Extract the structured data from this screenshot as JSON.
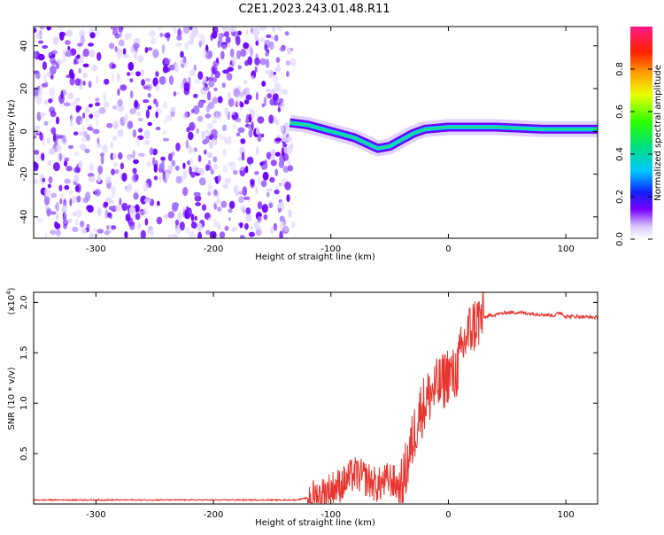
{
  "title": "C2E1.2023.243.01.48.R11",
  "colors": {
    "snr_line": "#e8342f",
    "spectro_purple": "#6a00ff",
    "spectro_light": "#d9c8ff"
  },
  "chart_data": [
    {
      "type": "heatmap",
      "xlabel": "Height of straight line (km)",
      "ylabel": "Frequency (Hz)",
      "xlim": [
        -353,
        127
      ],
      "ylim": [
        -50,
        49
      ],
      "x_ticks": [
        "-300",
        "-200",
        "-100",
        "0",
        "100"
      ],
      "x_tick_values": [
        -300,
        -200,
        -100,
        0,
        100
      ],
      "y_ticks": [
        "40",
        "20",
        "0",
        "-20",
        "-40"
      ],
      "y_tick_values": [
        40,
        20,
        0,
        -20,
        -40
      ],
      "noise_region": [
        -353,
        -132
      ],
      "signal_track": {
        "x": [
          -135,
          -120,
          -100,
          -80,
          -60,
          -50,
          -40,
          -30,
          -20,
          0,
          40,
          80,
          127
        ],
        "y": [
          4,
          3,
          0,
          -3,
          -8,
          -7,
          -4,
          -1,
          1,
          2,
          2,
          1,
          1
        ]
      },
      "colorbar": {
        "label": "Normalized spectral amplitude",
        "range": [
          0,
          1
        ],
        "ticks": [
          "0.0",
          "0.2",
          "0.4",
          "0.6",
          "0.8"
        ],
        "tick_values": [
          0,
          0.2,
          0.4,
          0.6,
          0.8
        ]
      }
    },
    {
      "type": "line",
      "xlabel": "Height of straight line (km)",
      "ylabel": "SNR (10 * v/v)",
      "scale_note": "(x10",
      "scale_exp": "4",
      "scale_close": ")",
      "xlim": [
        -353,
        127
      ],
      "ylim": [
        0,
        2.1
      ],
      "x_ticks": [
        "-300",
        "-200",
        "-100",
        "0",
        "100"
      ],
      "x_tick_values": [
        -300,
        -200,
        -100,
        0,
        100
      ],
      "y_ticks": [
        "0.5",
        "1.0",
        "1.5",
        "2.0"
      ],
      "y_tick_values": [
        0.5,
        1.0,
        1.5,
        2.0
      ],
      "series": [
        {
          "x": [
            -353,
            -300,
            -200,
            -130,
            -110,
            -100,
            -90,
            -80,
            -70,
            -60,
            -50,
            -40,
            -35,
            -30,
            -25,
            -20,
            -15,
            -10,
            -5,
            0,
            5,
            10,
            15,
            20,
            25,
            30,
            40,
            50,
            60,
            70,
            80,
            90,
            95,
            100,
            110,
            127
          ],
          "y": [
            0.04,
            0.04,
            0.04,
            0.04,
            0.08,
            0.15,
            0.2,
            0.3,
            0.25,
            0.18,
            0.25,
            0.15,
            0.4,
            0.65,
            0.9,
            1.0,
            1.1,
            1.15,
            1.2,
            1.3,
            1.25,
            1.45,
            1.65,
            1.75,
            1.82,
            1.85,
            1.88,
            1.9,
            1.9,
            1.89,
            1.88,
            1.87,
            1.9,
            1.86,
            1.86,
            1.85
          ]
        }
      ]
    }
  ]
}
